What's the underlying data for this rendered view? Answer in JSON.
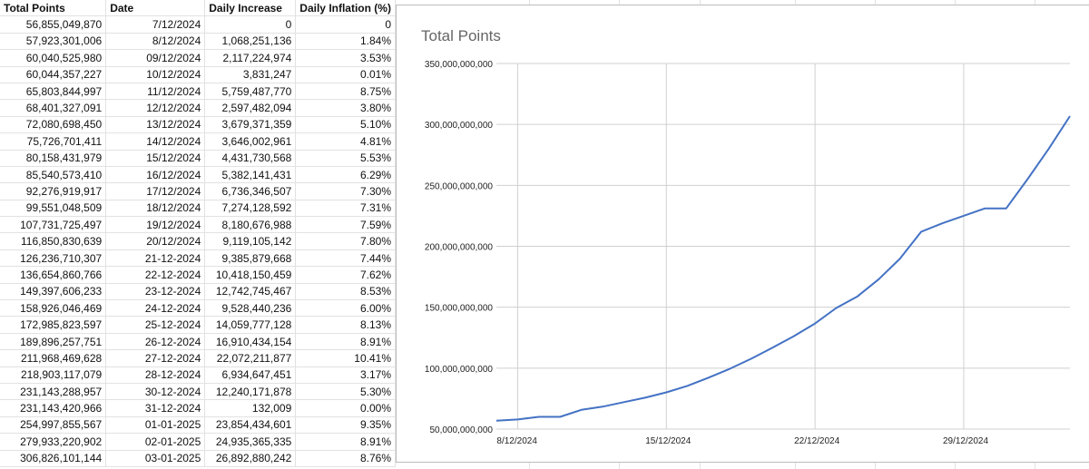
{
  "sheet": {
    "headers": [
      "Total Points",
      "Date",
      "Daily Increase",
      "Daily Inflation (%)"
    ],
    "rows": [
      [
        "56,855,049,870",
        "7/12/2024",
        "0",
        "0"
      ],
      [
        "57,923,301,006",
        "8/12/2024",
        "1,068,251,136",
        "1.84%"
      ],
      [
        "60,040,525,980",
        "09/12/2024",
        "2,117,224,974",
        "3.53%"
      ],
      [
        "60,044,357,227",
        "10/12/2024",
        "3,831,247",
        "0.01%"
      ],
      [
        "65,803,844,997",
        "11/12/2024",
        "5,759,487,770",
        "8.75%"
      ],
      [
        "68,401,327,091",
        "12/12/2024",
        "2,597,482,094",
        "3.80%"
      ],
      [
        "72,080,698,450",
        "13/12/2024",
        "3,679,371,359",
        "5.10%"
      ],
      [
        "75,726,701,411",
        "14/12/2024",
        "3,646,002,961",
        "4.81%"
      ],
      [
        "80,158,431,979",
        "15/12/2024",
        "4,431,730,568",
        "5.53%"
      ],
      [
        "85,540,573,410",
        "16/12/2024",
        "5,382,141,431",
        "6.29%"
      ],
      [
        "92,276,919,917",
        "17/12/2024",
        "6,736,346,507",
        "7.30%"
      ],
      [
        "99,551,048,509",
        "18/12/2024",
        "7,274,128,592",
        "7.31%"
      ],
      [
        "107,731,725,497",
        "19/12/2024",
        "8,180,676,988",
        "7.59%"
      ],
      [
        "116,850,830,639",
        "20/12/2024",
        "9,119,105,142",
        "7.80%"
      ],
      [
        "126,236,710,307",
        "21-12-2024",
        "9,385,879,668",
        "7.44%"
      ],
      [
        "136,654,860,766",
        "22-12-2024",
        "10,418,150,459",
        "7.62%"
      ],
      [
        "149,397,606,233",
        "23-12-2024",
        "12,742,745,467",
        "8.53%"
      ],
      [
        "158,926,046,469",
        "24-12-2024",
        "9,528,440,236",
        "6.00%"
      ],
      [
        "172,985,823,597",
        "25-12-2024",
        "14,059,777,128",
        "8.13%"
      ],
      [
        "189,896,257,751",
        "26-12-2024",
        "16,910,434,154",
        "8.91%"
      ],
      [
        "211,968,469,628",
        "27-12-2024",
        "22,072,211,877",
        "10.41%"
      ],
      [
        "218,903,117,079",
        "28-12-2024",
        "6,934,647,451",
        "3.17%"
      ],
      [
        "231,143,288,957",
        "30-12-2024",
        "12,240,171,878",
        "5.30%"
      ],
      [
        "231,143,420,966",
        "31-12-2024",
        "132,009",
        "0.00%"
      ],
      [
        "254,997,855,567",
        "01-01-2025",
        "23,854,434,601",
        "9.35%"
      ],
      [
        "279,933,220,902",
        "02-01-2025",
        "24,935,365,335",
        "8.91%"
      ],
      [
        "306,826,101,144",
        "03-01-2025",
        "26,892,880,242",
        "8.76%"
      ]
    ]
  },
  "chart_data": {
    "type": "line",
    "title": "Total Points",
    "xlabel": "",
    "ylabel": "",
    "x": [
      "2024-12-07",
      "2024-12-08",
      "2024-12-09",
      "2024-12-10",
      "2024-12-11",
      "2024-12-12",
      "2024-12-13",
      "2024-12-14",
      "2024-12-15",
      "2024-12-16",
      "2024-12-17",
      "2024-12-18",
      "2024-12-19",
      "2024-12-20",
      "2024-12-21",
      "2024-12-22",
      "2024-12-23",
      "2024-12-24",
      "2024-12-25",
      "2024-12-26",
      "2024-12-27",
      "2024-12-28",
      "2024-12-30",
      "2024-12-31",
      "2025-01-01",
      "2025-01-02",
      "2025-01-03"
    ],
    "series": [
      {
        "values": [
          56855049870,
          57923301006,
          60040525980,
          60044357227,
          65803844997,
          68401327091,
          72080698450,
          75726701411,
          80158431979,
          85540573410,
          92276919917,
          99551048509,
          107731725497,
          116850830639,
          126236710307,
          136654860766,
          149397606233,
          158926046469,
          172985823597,
          189896257751,
          211968469628,
          218903117079,
          231143288957,
          231143420966,
          254997855567,
          279933220902,
          306826101144
        ]
      }
    ],
    "xlim": [
      "2024-12-07",
      "2025-01-03"
    ],
    "ylim": [
      50000000000,
      350000000000
    ],
    "y_ticks": [
      50000000000,
      100000000000,
      150000000000,
      200000000000,
      250000000000,
      300000000000,
      350000000000
    ],
    "y_tick_labels": [
      "50,000,000,000",
      "100,000,000,000",
      "150,000,000,000",
      "200,000,000,000",
      "250,000,000,000",
      "300,000,000,000",
      "350,000,000,000"
    ],
    "x_ticks": [
      "2024-12-08",
      "2024-12-15",
      "2024-12-22",
      "2024-12-29"
    ],
    "x_tick_labels": [
      "8/12/2024",
      "15/12/2024",
      "22/12/2024",
      "29/12/2024"
    ],
    "grid": true,
    "legend": "none",
    "line_color": "#4472c4"
  }
}
